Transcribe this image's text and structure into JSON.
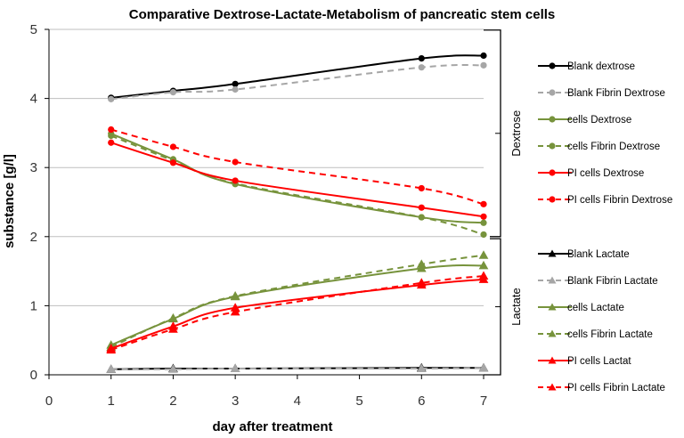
{
  "chart_data": {
    "type": "line",
    "title": "Comparative Dextrose-Lactate-Metabolism of pancreatic stem cells",
    "xlabel": "day after treatment",
    "ylabel": "substance  [g/l]",
    "xlim": [
      0,
      7
    ],
    "ylim": [
      0,
      5
    ],
    "xticks": [
      "0",
      "1",
      "2",
      "3",
      "4",
      "5",
      "6",
      "7"
    ],
    "yticks": [
      "0",
      "1",
      "2",
      "3",
      "4",
      "5"
    ],
    "grid": "horizontal",
    "legend_position": "right",
    "group_labels": {
      "dextrose": "Dextrose",
      "lactate": "Lactate"
    },
    "x": [
      1,
      2,
      3,
      6,
      7
    ],
    "series": [
      {
        "name": "Blank dextrose",
        "group": "dextrose",
        "color": "#000000",
        "dash": "solid",
        "marker": "circle",
        "values": [
          4.01,
          4.11,
          4.21,
          4.58,
          4.62
        ]
      },
      {
        "name": "Blank Fibrin Dextrose",
        "group": "dextrose",
        "color": "#a6a6a6",
        "dash": "dashed",
        "marker": "circle",
        "values": [
          3.99,
          4.09,
          4.13,
          4.45,
          4.48
        ]
      },
      {
        "name": "cells Dextrose",
        "group": "dextrose",
        "color": "#77933c",
        "dash": "solid",
        "marker": "circle",
        "values": [
          3.49,
          3.12,
          2.76,
          2.28,
          2.2
        ]
      },
      {
        "name": "cells Fibrin Dextrose",
        "group": "dextrose",
        "color": "#77933c",
        "dash": "dashed",
        "marker": "circle",
        "values": [
          3.46,
          3.1,
          2.77,
          2.28,
          2.03
        ]
      },
      {
        "name": "PI cells Dextrose",
        "group": "dextrose",
        "color": "#ff0000",
        "dash": "solid",
        "marker": "circle",
        "values": [
          3.36,
          3.07,
          2.81,
          2.42,
          2.29
        ]
      },
      {
        "name": "PI cells Fibrin Dextrose",
        "group": "dextrose",
        "color": "#ff0000",
        "dash": "dashed",
        "marker": "circle",
        "values": [
          3.55,
          3.3,
          3.08,
          2.7,
          2.47
        ]
      },
      {
        "name": "Blank Lactate",
        "group": "lactate",
        "color": "#000000",
        "dash": "solid",
        "marker": "triangle",
        "values": [
          0.08,
          0.09,
          0.09,
          0.1,
          0.1
        ]
      },
      {
        "name": "Blank Fibrin Lactate",
        "group": "lactate",
        "color": "#a6a6a6",
        "dash": "dashed",
        "marker": "triangle",
        "values": [
          0.08,
          0.08,
          0.09,
          0.09,
          0.1
        ]
      },
      {
        "name": "cells Lactate",
        "group": "lactate",
        "color": "#77933c",
        "dash": "solid",
        "marker": "triangle",
        "values": [
          0.43,
          0.81,
          1.13,
          1.54,
          1.58
        ]
      },
      {
        "name": "cells Fibrin Lactate",
        "group": "lactate",
        "color": "#77933c",
        "dash": "dashed",
        "marker": "triangle",
        "values": [
          0.4,
          0.82,
          1.14,
          1.6,
          1.73
        ]
      },
      {
        "name": "PI cells Lactat",
        "group": "lactate",
        "color": "#ff0000",
        "dash": "solid",
        "marker": "triangle",
        "values": [
          0.38,
          0.7,
          0.97,
          1.3,
          1.38
        ]
      },
      {
        "name": "PI cells Fibrin Lactate",
        "group": "lactate",
        "color": "#ff0000",
        "dash": "dashed",
        "marker": "triangle",
        "values": [
          0.36,
          0.66,
          0.91,
          1.33,
          1.43
        ]
      }
    ]
  }
}
